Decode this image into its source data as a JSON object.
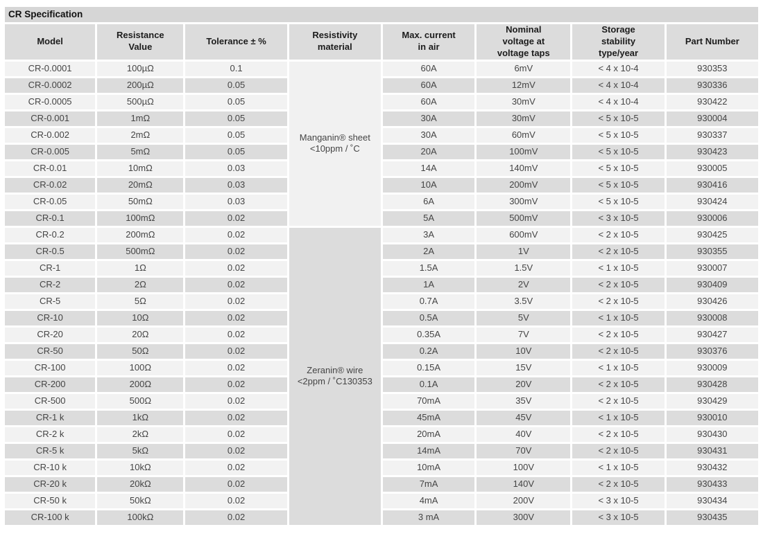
{
  "title": "CR Specification",
  "table": {
    "columns": [
      {
        "id": "model",
        "lines": [
          "Model"
        ]
      },
      {
        "id": "resistance",
        "lines": [
          "Resistance",
          "Value"
        ]
      },
      {
        "id": "tolerance",
        "lines": [
          "Tolerance ± %"
        ]
      },
      {
        "id": "material",
        "lines": [
          "Resistivity",
          "material"
        ]
      },
      {
        "id": "max_current",
        "lines": [
          "Max. current",
          "in air"
        ]
      },
      {
        "id": "nominal_voltage",
        "lines": [
          "Nominal",
          "voltage at",
          "voltage taps"
        ]
      },
      {
        "id": "storage_stability",
        "lines": [
          "Storage",
          "stability",
          "type/year"
        ]
      },
      {
        "id": "part_number",
        "lines": [
          "Part  Number"
        ]
      }
    ],
    "materials": [
      {
        "name": "manganin",
        "lines": [
          "Manganin® sheet",
          "<10ppm / ˚C"
        ],
        "rows": 10
      },
      {
        "name": "zeranin",
        "lines": [
          "Zeranin® wire",
          "<2ppm / ˚C130353"
        ],
        "rows": 18
      }
    ],
    "rows": [
      {
        "model": "CR-0.0001",
        "resistance": "100µΩ",
        "tolerance": "0.1",
        "max_current": "60A",
        "nominal_voltage": "6mV",
        "storage_stability": "< 4 x 10-4",
        "part_number": "930353"
      },
      {
        "model": "CR-0.0002",
        "resistance": "200µΩ",
        "tolerance": "0.05",
        "max_current": "60A",
        "nominal_voltage": "12mV",
        "storage_stability": "< 4 x 10-4",
        "part_number": "930336"
      },
      {
        "model": "CR-0.0005",
        "resistance": "500µΩ",
        "tolerance": "0.05",
        "max_current": "60A",
        "nominal_voltage": "30mV",
        "storage_stability": "< 4 x 10-4",
        "part_number": "930422"
      },
      {
        "model": "CR-0.001",
        "resistance": "1mΩ",
        "tolerance": "0.05",
        "max_current": "30A",
        "nominal_voltage": "30mV",
        "storage_stability": "< 5 x 10-5",
        "part_number": "930004"
      },
      {
        "model": "CR-0.002",
        "resistance": "2mΩ",
        "tolerance": "0.05",
        "max_current": "30A",
        "nominal_voltage": "60mV",
        "storage_stability": "< 5 x 10-5",
        "part_number": "930337"
      },
      {
        "model": "CR-0.005",
        "resistance": "5mΩ",
        "tolerance": "0.05",
        "max_current": "20A",
        "nominal_voltage": "100mV",
        "storage_stability": "< 5 x 10-5",
        "part_number": "930423"
      },
      {
        "model": "CR-0.01",
        "resistance": "10mΩ",
        "tolerance": "0.03",
        "max_current": "14A",
        "nominal_voltage": "140mV",
        "storage_stability": "< 5 x 10-5",
        "part_number": "930005"
      },
      {
        "model": "CR-0.02",
        "resistance": "20mΩ",
        "tolerance": "0.03",
        "max_current": "10A",
        "nominal_voltage": "200mV",
        "storage_stability": "< 5 x 10-5",
        "part_number": "930416"
      },
      {
        "model": "CR-0.05",
        "resistance": "50mΩ",
        "tolerance": "0.03",
        "max_current": "6A",
        "nominal_voltage": "300mV",
        "storage_stability": "< 5 x 10-5",
        "part_number": "930424"
      },
      {
        "model": "CR-0.1",
        "resistance": "100mΩ",
        "tolerance": "0.02",
        "max_current": "5A",
        "nominal_voltage": "500mV",
        "storage_stability": "< 3 x 10-5",
        "part_number": "930006"
      },
      {
        "model": "CR-0.2",
        "resistance": "200mΩ",
        "tolerance": "0.02",
        "max_current": "3A",
        "nominal_voltage": "600mV",
        "storage_stability": "< 2 x 10-5",
        "part_number": "930425"
      },
      {
        "model": "CR-0.5",
        "resistance": "500mΩ",
        "tolerance": "0.02",
        "max_current": "2A",
        "nominal_voltage": "1V",
        "storage_stability": "< 2 x 10-5",
        "part_number": "930355"
      },
      {
        "model": "CR-1",
        "resistance": "1Ω",
        "tolerance": "0.02",
        "max_current": "1.5A",
        "nominal_voltage": "1.5V",
        "storage_stability": "< 1 x 10-5",
        "part_number": "930007"
      },
      {
        "model": "CR-2",
        "resistance": "2Ω",
        "tolerance": "0.02",
        "max_current": "1A",
        "nominal_voltage": "2V",
        "storage_stability": "< 2 x 10-5",
        "part_number": "930409"
      },
      {
        "model": "CR-5",
        "resistance": "5Ω",
        "tolerance": "0.02",
        "max_current": "0.7A",
        "nominal_voltage": "3.5V",
        "storage_stability": "< 2 x 10-5",
        "part_number": "930426"
      },
      {
        "model": "CR-10",
        "resistance": "10Ω",
        "tolerance": "0.02",
        "max_current": "0.5A",
        "nominal_voltage": "5V",
        "storage_stability": "< 1 x 10-5",
        "part_number": "930008"
      },
      {
        "model": "CR-20",
        "resistance": "20Ω",
        "tolerance": "0.02",
        "max_current": "0.35A",
        "nominal_voltage": "7V",
        "storage_stability": "< 2 x 10-5",
        "part_number": "930427"
      },
      {
        "model": "CR-50",
        "resistance": "50Ω",
        "tolerance": "0.02",
        "max_current": "0.2A",
        "nominal_voltage": "10V",
        "storage_stability": "< 2 x 10-5",
        "part_number": "930376"
      },
      {
        "model": "CR-100",
        "resistance": "100Ω",
        "tolerance": "0.02",
        "max_current": "0.15A",
        "nominal_voltage": "15V",
        "storage_stability": "< 1 x 10-5",
        "part_number": "930009"
      },
      {
        "model": "CR-200",
        "resistance": "200Ω",
        "tolerance": "0.02",
        "max_current": "0.1A",
        "nominal_voltage": "20V",
        "storage_stability": "< 2 x 10-5",
        "part_number": "930428"
      },
      {
        "model": "CR-500",
        "resistance": "500Ω",
        "tolerance": "0.02",
        "max_current": "70mA",
        "nominal_voltage": "35V",
        "storage_stability": "< 2 x 10-5",
        "part_number": "930429"
      },
      {
        "model": "CR-1 k",
        "resistance": "1kΩ",
        "tolerance": "0.02",
        "max_current": "45mA",
        "nominal_voltage": "45V",
        "storage_stability": "< 1 x 10-5",
        "part_number": "930010"
      },
      {
        "model": "CR-2 k",
        "resistance": "2kΩ",
        "tolerance": "0.02",
        "max_current": "20mA",
        "nominal_voltage": "40V",
        "storage_stability": "< 2 x 10-5",
        "part_number": "930430"
      },
      {
        "model": "CR-5 k",
        "resistance": "5kΩ",
        "tolerance": "0.02",
        "max_current": "14mA",
        "nominal_voltage": "70V",
        "storage_stability": "< 2 x 10-5",
        "part_number": "930431"
      },
      {
        "model": "CR-10 k",
        "resistance": "10kΩ",
        "tolerance": "0.02",
        "max_current": "10mA",
        "nominal_voltage": "100V",
        "storage_stability": "< 1 x 10-5",
        "part_number": "930432"
      },
      {
        "model": "CR-20 k",
        "resistance": "20kΩ",
        "tolerance": "0.02",
        "max_current": "7mA",
        "nominal_voltage": "140V",
        "storage_stability": "< 2 x 10-5",
        "part_number": "930433"
      },
      {
        "model": "CR-50 k",
        "resistance": "50kΩ",
        "tolerance": "0.02",
        "max_current": "4mA",
        "nominal_voltage": "200V",
        "storage_stability": "< 3 x 10-5",
        "part_number": "930434"
      },
      {
        "model": "CR-100 k",
        "resistance": "100kΩ",
        "tolerance": "0.02",
        "max_current": "3 mA",
        "nominal_voltage": "300V",
        "storage_stability": "< 3 x 10-5",
        "part_number": "930435"
      }
    ]
  }
}
